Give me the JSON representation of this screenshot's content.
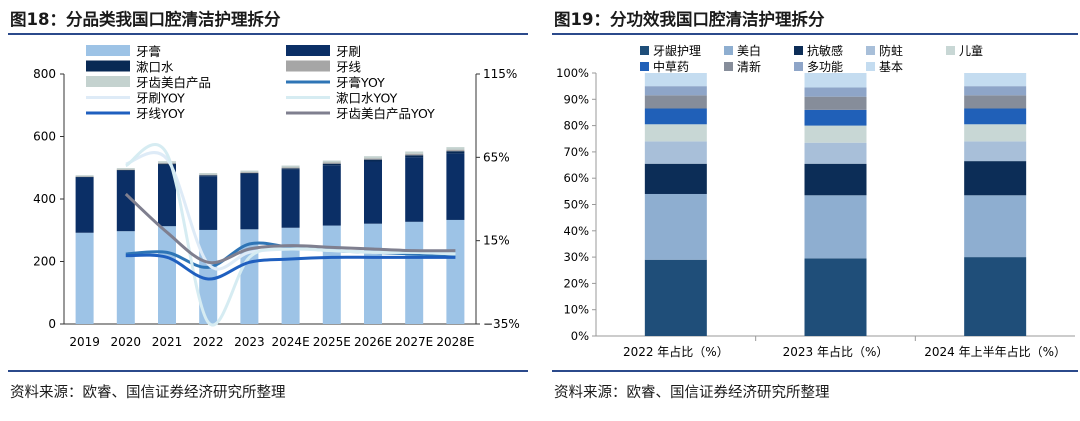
{
  "figures": [
    {
      "title": "图18：分品类我国口腔清洁护理拆分",
      "source": "资料来源：欧睿、国信证券经济研究所整理"
    },
    {
      "title": "图19：分功效我国口腔清洁护理拆分",
      "source": "资料来源：欧睿、国信证券经济研究所整理"
    }
  ],
  "colors": {
    "toothpaste": "#9dc3e6",
    "toothbrush": "#0b2f66",
    "mouthwash": "#082954",
    "floss": "#a6a6a6",
    "whitening": "#c4d2cf",
    "toothpaste_yoy": "#2e75b6",
    "toothbrush_yoy": "#deebf7",
    "mouthwash_yoy": "#d6ecf2",
    "floss_yoy": "#1f5fbf",
    "whitening_yoy": "#7f7f8f",
    "gum_care": "#1f4e79",
    "beauty_white": "#8eaed0",
    "anti_sensitive": "#0c2d57",
    "anti_decay": "#a8bfd9",
    "children": "#c8d7d5",
    "herbal": "#2060b8",
    "fresh": "#868d9a",
    "multi_function": "#8ea5c8",
    "basic": "#c4dcf0"
  },
  "chart_data": [
    {
      "type": "bar",
      "stacked": true,
      "categories": [
        "2019",
        "2020",
        "2021",
        "2022",
        "2023",
        "2024E",
        "2025E",
        "2026E",
        "2027E",
        "2028E"
      ],
      "ylim": [
        0,
        800
      ],
      "yticks": [
        "800",
        "600",
        "400",
        "200",
        "0"
      ],
      "y2lim": [
        -35,
        115
      ],
      "y2ticks": [
        "115%",
        "65%",
        "15%",
        "−35%"
      ],
      "legend": {
        "placement": "top",
        "columns": 2
      },
      "series": [
        {
          "name": "牙膏",
          "kind": "bar",
          "color_key": "toothpaste",
          "values": [
            292,
            297,
            313,
            301,
            303,
            308,
            315,
            321,
            327,
            333
          ]
        },
        {
          "name": "牙刷",
          "kind": "bar",
          "color_key": "toothbrush",
          "values": [
            177,
            193,
            196,
            172,
            177,
            186,
            193,
            199,
            207,
            213
          ]
        },
        {
          "name": "漱口水",
          "kind": "bar",
          "color_key": "mouthwash",
          "values": [
            2,
            3,
            4,
            3,
            3,
            4,
            5,
            6,
            6,
            7
          ]
        },
        {
          "name": "牙线",
          "kind": "bar",
          "color_key": "floss",
          "values": [
            2,
            2,
            3,
            2,
            3,
            3,
            4,
            4,
            5,
            5
          ]
        },
        {
          "name": "牙齿美白产品",
          "kind": "bar",
          "color_key": "whitening",
          "values": [
            3,
            4,
            5,
            5,
            5,
            6,
            6,
            7,
            7,
            8
          ]
        },
        {
          "name": "牙膏YOY",
          "kind": "line",
          "axis": "right",
          "color_key": "toothpaste_yoy",
          "values": [
            null,
            7,
            8,
            -1,
            13,
            11,
            9,
            8,
            7,
            6
          ]
        },
        {
          "name": "牙刷YOY",
          "kind": "line",
          "axis": "right",
          "color_key": "toothbrush_yoy",
          "values": [
            null,
            61,
            64,
            1,
            8,
            10,
            9,
            8,
            8,
            7
          ]
        },
        {
          "name": "漱口水YOY",
          "kind": "line",
          "axis": "right",
          "color_key": "mouthwash_yoy",
          "values": [
            null,
            60,
            67,
            -34,
            5,
            10,
            9,
            8,
            8,
            7
          ]
        },
        {
          "name": "牙线YOY",
          "kind": "line",
          "axis": "right",
          "color_key": "floss_yoy",
          "values": [
            null,
            6,
            5,
            -8,
            2,
            4,
            5,
            5,
            5,
            5
          ]
        },
        {
          "name": "牙齿美白产品YOY",
          "kind": "line",
          "axis": "right",
          "color_key": "whitening_yoy",
          "values": [
            null,
            43,
            20,
            2,
            10,
            12,
            11,
            10,
            9,
            9
          ]
        }
      ]
    },
    {
      "type": "bar",
      "stacked": true,
      "percent": true,
      "categories": [
        "2022 年占比（%）",
        "2023 年占比（%）",
        "2024 年上半年占比（%）"
      ],
      "ylim": [
        0,
        100
      ],
      "yticks": [
        "100%",
        "90%",
        "80%",
        "70%",
        "60%",
        "50%",
        "40%",
        "30%",
        "20%",
        "10%",
        "0%"
      ],
      "legend": {
        "placement": "top",
        "columns": 5
      },
      "series": [
        {
          "name": "牙龈护理",
          "color_key": "gum_care",
          "values": [
            29,
            29.5,
            30
          ]
        },
        {
          "name": "美白",
          "color_key": "beauty_white",
          "values": [
            25,
            24,
            23.5
          ]
        },
        {
          "name": "抗敏感",
          "color_key": "anti_sensitive",
          "values": [
            11.5,
            12,
            13
          ]
        },
        {
          "name": "防蛀",
          "color_key": "anti_decay",
          "values": [
            8.5,
            8,
            7.5
          ]
        },
        {
          "name": "儿童",
          "color_key": "children",
          "values": [
            6.5,
            6.5,
            6.5
          ]
        },
        {
          "name": "中草药",
          "color_key": "herbal",
          "values": [
            6,
            6,
            6
          ]
        },
        {
          "name": "清新",
          "color_key": "fresh",
          "values": [
            5,
            5,
            5
          ]
        },
        {
          "name": "多功能",
          "color_key": "multi_function",
          "values": [
            3.5,
            3.5,
            3.5
          ]
        },
        {
          "name": "基本",
          "color_key": "basic",
          "values": [
            5,
            5.5,
            5
          ]
        }
      ]
    }
  ]
}
